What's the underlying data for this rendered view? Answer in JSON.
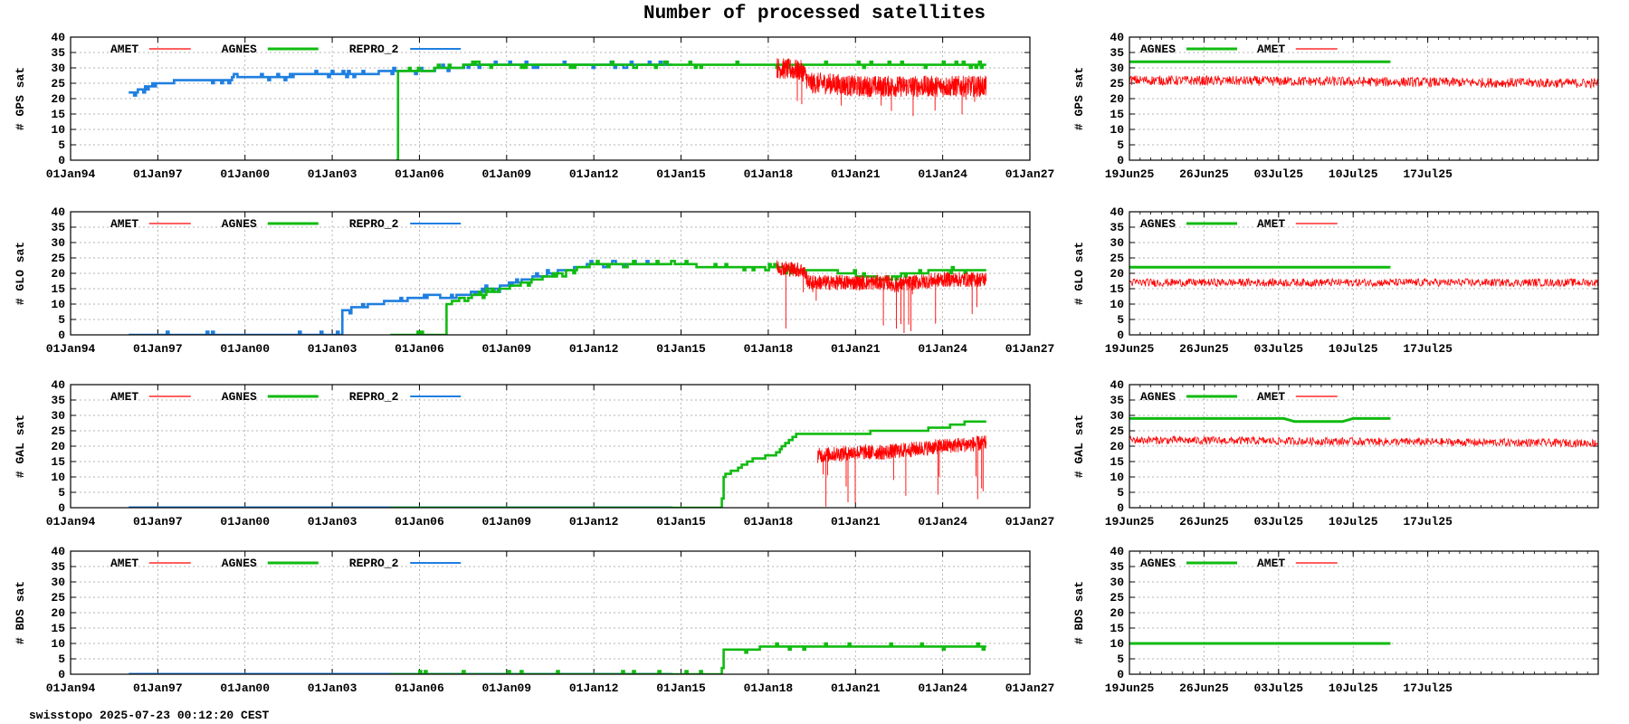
{
  "title": "Number of processed satellites",
  "footer": "swisstopo 2025-07-23 00:12:20 CEST",
  "colors": {
    "AMET": "#ff0000",
    "AGNES": "#11bb11",
    "REPRO_2": "#1f7fe0",
    "grid": "#9a9a9a"
  },
  "chart_data": [
    {
      "type": "line",
      "panel": "long",
      "ylabel": "# GPS sat",
      "ylim": [
        0,
        40
      ],
      "yticks": [
        0,
        5,
        10,
        15,
        20,
        25,
        30,
        35,
        40
      ],
      "xlim": [
        1994.0,
        2027.0
      ],
      "xticks": [
        "01Jan94",
        "01Jan97",
        "01Jan00",
        "01Jan03",
        "01Jan06",
        "01Jan09",
        "01Jan12",
        "01Jan15",
        "01Jan18",
        "01Jan21",
        "01Jan24",
        "01Jan27"
      ],
      "legend": [
        "AMET",
        "AGNES",
        "REPRO_2"
      ],
      "legend_position": "top-left",
      "series": [
        {
          "name": "REPRO_2",
          "x": [
            1996.0,
            1996.5,
            1997.0,
            1998.0,
            1999.0,
            2000.0,
            2001.0,
            2002.0,
            2003.0,
            2004.0,
            2005.0,
            2006.0,
            2007.0,
            2008.0,
            2010.0,
            2012.0,
            2014.7
          ],
          "y": [
            22,
            23,
            25,
            26,
            26,
            27,
            27,
            28,
            28,
            28,
            29,
            29,
            30,
            31,
            31,
            31,
            31
          ],
          "noise": 1.2,
          "pattern": "steps"
        },
        {
          "name": "AGNES",
          "x": [
            2005.2,
            2005.21,
            2005.23,
            2006.0,
            2007.0,
            2008.0,
            2010.0,
            2012.0,
            2015.0,
            2018.0,
            2019.0,
            2021.0,
            2024.0,
            2025.5
          ],
          "y": [
            0,
            29,
            29,
            29,
            30,
            31,
            31,
            31,
            31,
            31,
            31,
            31,
            31,
            31
          ],
          "noise": 0.8,
          "pattern": "steps"
        },
        {
          "name": "AMET",
          "x": [
            2018.3,
            2019.2,
            2019.4,
            2020.0,
            2021.0,
            2022.0,
            2023.0,
            2024.0,
            2025.5
          ],
          "y": [
            30,
            29,
            25,
            25,
            24,
            24,
            24,
            24,
            24
          ],
          "noise": 3.5,
          "pattern": "dense",
          "spikes": [
            14,
            20
          ],
          "spike_count": 10
        }
      ]
    },
    {
      "type": "line",
      "panel": "short",
      "ylabel": "# GPS sat",
      "ylim": [
        0,
        40
      ],
      "yticks": [
        0,
        5,
        10,
        15,
        20,
        25,
        30,
        35,
        40
      ],
      "xlim": [
        0,
        44
      ],
      "xticks": [
        {
          "v": 0,
          "label": "19Jun25"
        },
        {
          "v": 7,
          "label": "26Jun25"
        },
        {
          "v": 14,
          "label": "03Jul25"
        },
        {
          "v": 21,
          "label": "10Jul25"
        },
        {
          "v": 28,
          "label": "17Jul25"
        }
      ],
      "legend": [
        "AGNES",
        "AMET"
      ],
      "legend_position": "top-left",
      "series": [
        {
          "name": "AGNES",
          "x": [
            0,
            24.5
          ],
          "y": [
            32,
            32
          ],
          "noise": 0,
          "pattern": "flat"
        },
        {
          "name": "AMET",
          "x": [
            0,
            44
          ],
          "y": [
            26,
            25
          ],
          "noise": 1.6,
          "pattern": "noisy"
        }
      ]
    },
    {
      "type": "line",
      "panel": "long",
      "ylabel": "# GLO sat",
      "ylim": [
        0,
        40
      ],
      "yticks": [
        0,
        5,
        10,
        15,
        20,
        25,
        30,
        35,
        40
      ],
      "xlim": [
        1994.0,
        2027.0
      ],
      "xticks": [
        "01Jan94",
        "01Jan97",
        "01Jan00",
        "01Jan03",
        "01Jan06",
        "01Jan09",
        "01Jan12",
        "01Jan15",
        "01Jan18",
        "01Jan21",
        "01Jan24",
        "01Jan27"
      ],
      "legend": [
        "AMET",
        "AGNES",
        "REPRO_2"
      ],
      "legend_position": "top-left",
      "series": [
        {
          "name": "REPRO_2",
          "x": [
            1996.0,
            2003.3,
            2003.31,
            2004.0,
            2005.0,
            2006.0,
            2006.5,
            2007.0,
            2008.0,
            2009.0,
            2010.0,
            2011.0,
            2012.0,
            2014.5
          ],
          "y": [
            0,
            0,
            8,
            9,
            11,
            12,
            13,
            12,
            14,
            16,
            19,
            21,
            23,
            23
          ],
          "noise": 1.0,
          "pattern": "steps"
        },
        {
          "name": "AGNES",
          "x": [
            2005.0,
            2006.9,
            2006.91,
            2007.5,
            2008.5,
            2010.0,
            2012.0,
            2015.0,
            2016.0,
            2018.0,
            2019.0,
            2020.0,
            2022.0,
            2023.0,
            2024.0,
            2025.5
          ],
          "y": [
            0,
            0,
            10,
            12,
            14,
            18,
            23,
            23,
            22,
            22,
            21,
            21,
            18,
            20,
            21,
            21
          ],
          "noise": 0.9,
          "pattern": "steps"
        },
        {
          "name": "AMET",
          "x": [
            2018.3,
            2019.2,
            2019.4,
            2021.0,
            2022.2,
            2022.3,
            2023.0,
            2024.0,
            2025.5
          ],
          "y": [
            22,
            21,
            17,
            17,
            17,
            16,
            17,
            18,
            18
          ],
          "noise": 2.5,
          "pattern": "dense",
          "spikes": [
            0,
            15
          ],
          "spike_count": 14
        }
      ]
    },
    {
      "type": "line",
      "panel": "short",
      "ylabel": "# GLO sat",
      "ylim": [
        0,
        40
      ],
      "yticks": [
        0,
        5,
        10,
        15,
        20,
        25,
        30,
        35,
        40
      ],
      "xlim": [
        0,
        44
      ],
      "xticks": [
        {
          "v": 0,
          "label": "19Jun25"
        },
        {
          "v": 7,
          "label": "26Jun25"
        },
        {
          "v": 14,
          "label": "03Jul25"
        },
        {
          "v": 21,
          "label": "10Jul25"
        },
        {
          "v": 28,
          "label": "17Jul25"
        }
      ],
      "legend": [
        "AGNES",
        "AMET"
      ],
      "legend_position": "top-left",
      "series": [
        {
          "name": "AGNES",
          "x": [
            0,
            24.5
          ],
          "y": [
            22,
            22
          ],
          "noise": 0,
          "pattern": "flat"
        },
        {
          "name": "AMET",
          "x": [
            0,
            44
          ],
          "y": [
            17,
            17
          ],
          "noise": 1.3,
          "pattern": "noisy"
        }
      ]
    },
    {
      "type": "line",
      "panel": "long",
      "ylabel": "# GAL sat",
      "ylim": [
        0,
        40
      ],
      "yticks": [
        0,
        5,
        10,
        15,
        20,
        25,
        30,
        35,
        40
      ],
      "xlim": [
        1994.0,
        2027.0
      ],
      "xticks": [
        "01Jan94",
        "01Jan97",
        "01Jan00",
        "01Jan03",
        "01Jan06",
        "01Jan09",
        "01Jan12",
        "01Jan15",
        "01Jan18",
        "01Jan21",
        "01Jan24",
        "01Jan27"
      ],
      "legend": [
        "AMET",
        "AGNES",
        "REPRO_2"
      ],
      "legend_position": "top-left",
      "series": [
        {
          "name": "REPRO_2",
          "x": [
            1996.0,
            2014.7
          ],
          "y": [
            0,
            0
          ],
          "noise": 0,
          "pattern": "flat"
        },
        {
          "name": "AGNES",
          "x": [
            2005.0,
            2016.4,
            2016.41,
            2017.0,
            2017.5,
            2018.2,
            2018.7,
            2019.0,
            2021.0,
            2022.0,
            2023.0,
            2024.0,
            2025.0,
            2025.5
          ],
          "y": [
            0,
            0,
            10,
            13,
            16,
            17,
            22,
            24,
            24,
            25,
            25,
            26,
            28,
            28
          ],
          "noise": 0.5,
          "pattern": "steps"
        },
        {
          "name": "AMET",
          "x": [
            2019.7,
            2021.0,
            2022.0,
            2023.0,
            2024.0,
            2025.5
          ],
          "y": [
            17,
            18,
            18,
            19,
            20,
            21
          ],
          "noise": 2.5,
          "pattern": "dense",
          "spikes": [
            0,
            12
          ],
          "spike_count": 14
        }
      ]
    },
    {
      "type": "line",
      "panel": "short",
      "ylabel": "# GAL sat",
      "ylim": [
        0,
        40
      ],
      "yticks": [
        0,
        5,
        10,
        15,
        20,
        25,
        30,
        35,
        40
      ],
      "xlim": [
        0,
        44
      ],
      "xticks": [
        {
          "v": 0,
          "label": "19Jun25"
        },
        {
          "v": 7,
          "label": "26Jun25"
        },
        {
          "v": 14,
          "label": "03Jul25"
        },
        {
          "v": 21,
          "label": "10Jul25"
        },
        {
          "v": 28,
          "label": "17Jul25"
        }
      ],
      "legend": [
        "AGNES",
        "AMET"
      ],
      "legend_position": "top-left",
      "series": [
        {
          "name": "AGNES",
          "x": [
            0,
            14.5,
            15.5,
            20,
            21,
            24.5
          ],
          "y": [
            29,
            29,
            28,
            28,
            29,
            29
          ],
          "noise": 0,
          "pattern": "flat"
        },
        {
          "name": "AMET",
          "x": [
            0,
            44
          ],
          "y": [
            22,
            21
          ],
          "noise": 1.3,
          "pattern": "noisy"
        }
      ]
    },
    {
      "type": "line",
      "panel": "long",
      "ylabel": "# BDS sat",
      "ylim": [
        0,
        40
      ],
      "yticks": [
        0,
        5,
        10,
        15,
        20,
        25,
        30,
        35,
        40
      ],
      "xlim": [
        1994.0,
        2027.0
      ],
      "xticks": [
        "01Jan94",
        "01Jan97",
        "01Jan00",
        "01Jan03",
        "01Jan06",
        "01Jan09",
        "01Jan12",
        "01Jan15",
        "01Jan18",
        "01Jan21",
        "01Jan24",
        "01Jan27"
      ],
      "legend": [
        "AMET",
        "AGNES",
        "REPRO_2"
      ],
      "legend_position": "top-left",
      "series": [
        {
          "name": "REPRO_2",
          "x": [
            1996.0,
            2014.7
          ],
          "y": [
            0,
            0
          ],
          "noise": 0,
          "pattern": "flat"
        },
        {
          "name": "AGNES",
          "x": [
            2005.0,
            2016.4,
            2016.41,
            2019.0,
            2022.0,
            2025.5
          ],
          "y": [
            0,
            0,
            8,
            9,
            9,
            9
          ],
          "noise": 0.7,
          "pattern": "steps"
        }
      ]
    },
    {
      "type": "line",
      "panel": "short",
      "ylabel": "# BDS sat",
      "ylim": [
        0,
        40
      ],
      "yticks": [
        0,
        5,
        10,
        15,
        20,
        25,
        30,
        35,
        40
      ],
      "xlim": [
        0,
        44
      ],
      "xticks": [
        {
          "v": 0,
          "label": "19Jun25"
        },
        {
          "v": 7,
          "label": "26Jun25"
        },
        {
          "v": 14,
          "label": "03Jul25"
        },
        {
          "v": 21,
          "label": "10Jul25"
        },
        {
          "v": 28,
          "label": "17Jul25"
        }
      ],
      "legend": [
        "AGNES",
        "AMET"
      ],
      "legend_position": "top-left",
      "series": [
        {
          "name": "AGNES",
          "x": [
            0,
            24.5
          ],
          "y": [
            10,
            10
          ],
          "noise": 0,
          "pattern": "flat"
        }
      ]
    }
  ]
}
